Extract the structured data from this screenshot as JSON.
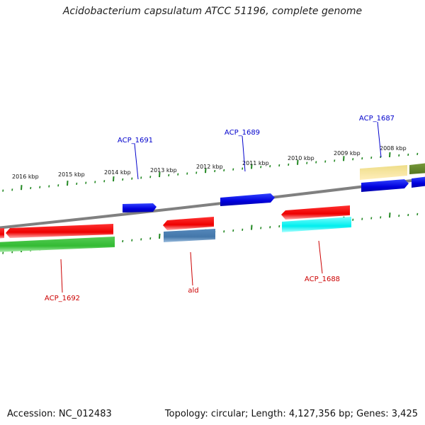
{
  "title": "Acidobacterium capsulatum ATCC 51196, complete genome",
  "footer": {
    "accession": "Accession: NC_012483",
    "summary": "Topology: circular; Length: 4,127,356 bp; Genes: 3,425"
  },
  "scale_labels": [
    "2016 kbp",
    "2015 kbp",
    "2014 kbp",
    "2013 kbp",
    "2012 kbp",
    "2011 kbp",
    "2010 kbp",
    "2009 kbp",
    "2008 kbp"
  ],
  "gene_labels": {
    "acp1691": "ACP_1691",
    "acp1689": "ACP_1689",
    "acp1687": "ACP_1687",
    "acp1692": "ACP_1692",
    "ald": "ald",
    "acp1688": "ACP_1688"
  },
  "colors": {
    "forward_gene": "#0000ee",
    "reverse_gene": "#ee0000",
    "green_gene": "#33bb33",
    "cyan_gene": "#00eeee",
    "steel_gene": "#4477aa",
    "yellow_gene": "#eedd88",
    "olive_gene": "#668822",
    "tick": "#228822",
    "backbone": "#888888",
    "forward_label": "#0000cc",
    "reverse_label": "#cc0000"
  }
}
